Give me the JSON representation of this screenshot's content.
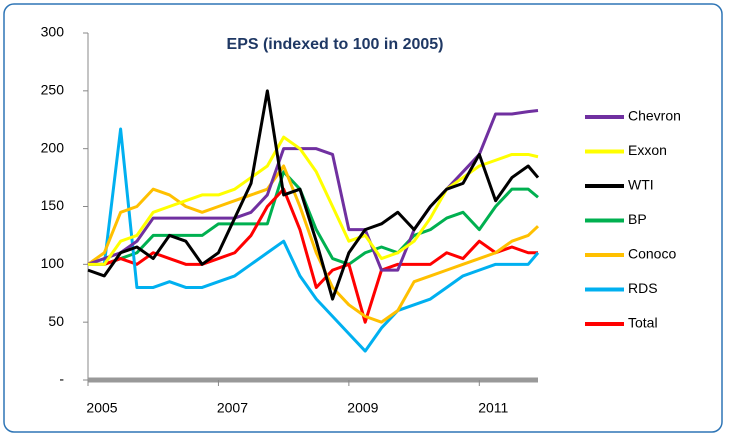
{
  "chart_data": {
    "type": "line",
    "title": "EPS (indexed to 100 in 2005)",
    "x": [
      2005,
      2005.25,
      2005.5,
      2005.75,
      2006,
      2006.25,
      2006.5,
      2006.75,
      2007,
      2007.25,
      2007.5,
      2007.75,
      2008,
      2008.25,
      2008.5,
      2008.75,
      2009,
      2009.25,
      2009.5,
      2009.75,
      2010,
      2010.25,
      2010.5,
      2010.75,
      2011,
      2011.25,
      2011.5,
      2011.75,
      2011.9
    ],
    "xlim": [
      2005,
      2011.9
    ],
    "xticks": [
      2005,
      2007,
      2009,
      2011
    ],
    "ylim": [
      0,
      300
    ],
    "yticks": [
      {
        "value": 0,
        "label": "-"
      },
      50,
      100,
      150,
      200,
      250,
      300
    ],
    "legend": "right",
    "series": [
      {
        "name": "Chevron",
        "color": "#7030a0",
        "values": [
          100,
          105,
          110,
          120,
          140,
          140,
          140,
          140,
          140,
          140,
          145,
          160,
          200,
          200,
          200,
          195,
          130,
          130,
          95,
          95,
          130,
          150,
          165,
          180,
          195,
          230,
          230,
          232,
          233
        ]
      },
      {
        "name": "Exxon",
        "color": "#ffff00",
        "values": [
          100,
          100,
          120,
          125,
          145,
          150,
          155,
          160,
          160,
          165,
          175,
          185,
          210,
          200,
          180,
          150,
          120,
          125,
          105,
          110,
          120,
          140,
          165,
          175,
          185,
          190,
          195,
          195,
          193
        ]
      },
      {
        "name": "WTI",
        "color": "#000000",
        "values": [
          95,
          90,
          110,
          115,
          105,
          125,
          120,
          100,
          110,
          140,
          170,
          250,
          160,
          165,
          120,
          70,
          110,
          130,
          135,
          145,
          130,
          150,
          165,
          170,
          195,
          155,
          175,
          185,
          175
        ]
      },
      {
        "name": "BP",
        "color": "#00b050",
        "values": [
          100,
          100,
          105,
          110,
          125,
          125,
          125,
          125,
          135,
          135,
          135,
          135,
          180,
          165,
          130,
          105,
          100,
          110,
          115,
          110,
          125,
          130,
          140,
          145,
          130,
          150,
          165,
          165,
          158
        ]
      },
      {
        "name": "Conoco",
        "color": "#ffc000",
        "values": [
          100,
          110,
          145,
          150,
          165,
          160,
          150,
          145,
          150,
          155,
          160,
          165,
          185,
          150,
          110,
          80,
          65,
          55,
          50,
          60,
          85,
          90,
          95,
          100,
          105,
          110,
          120,
          125,
          133
        ]
      },
      {
        "name": "RDS",
        "color": "#00b0f0",
        "values": [
          100,
          100,
          217,
          80,
          80,
          85,
          80,
          80,
          85,
          90,
          100,
          110,
          120,
          90,
          70,
          55,
          40,
          25,
          45,
          60,
          65,
          70,
          80,
          90,
          95,
          100,
          100,
          100,
          110
        ]
      },
      {
        "name": "Total",
        "color": "#ff0000",
        "values": [
          100,
          100,
          105,
          100,
          110,
          105,
          100,
          100,
          105,
          110,
          125,
          150,
          165,
          130,
          80,
          95,
          100,
          50,
          95,
          100,
          100,
          100,
          110,
          105,
          120,
          110,
          115,
          110,
          110
        ]
      }
    ]
  }
}
